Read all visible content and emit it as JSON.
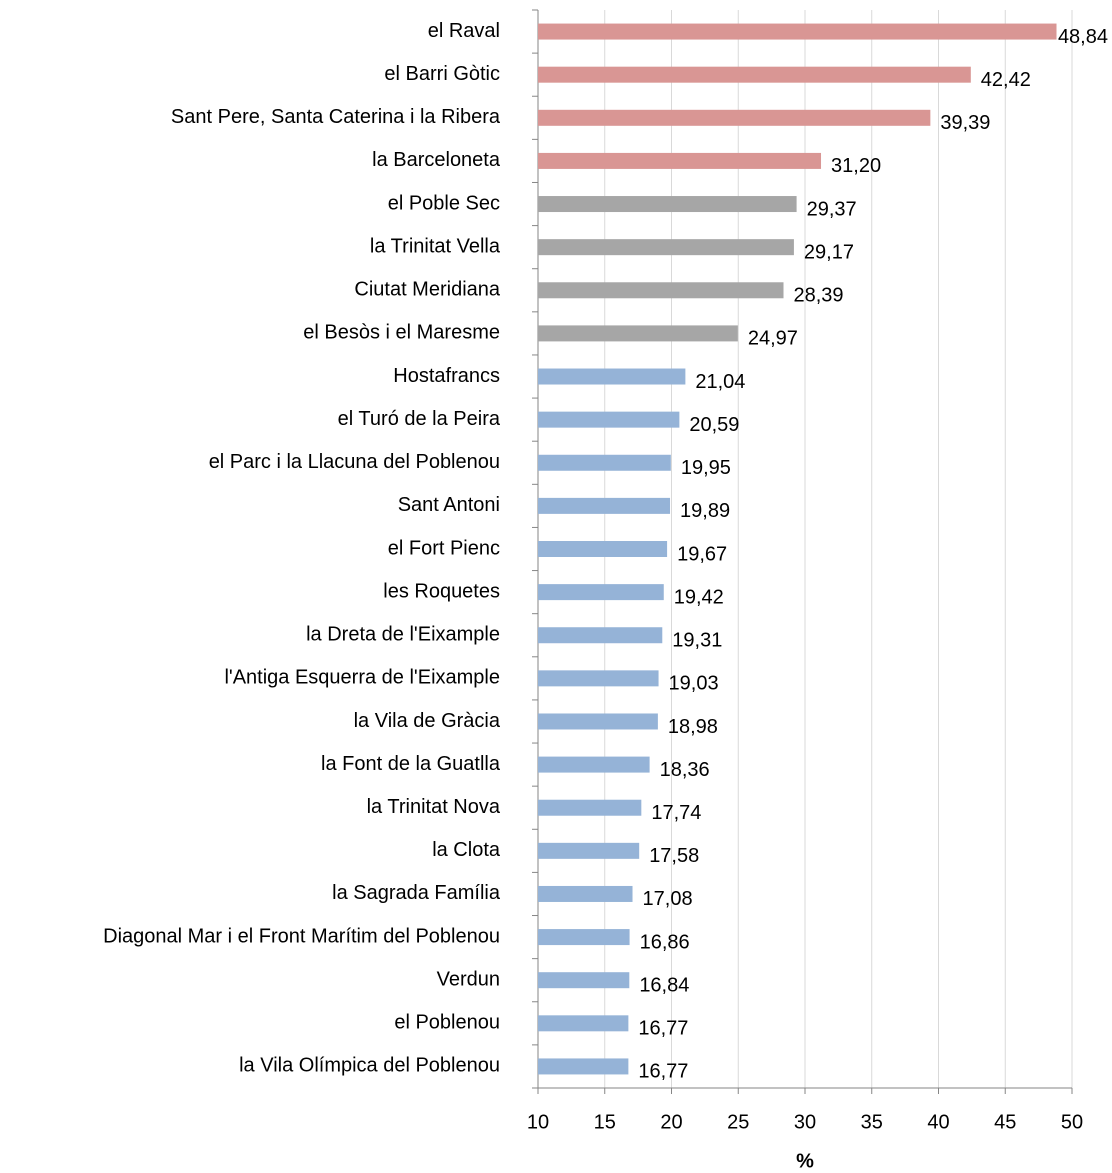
{
  "chart_data": {
    "type": "hbar",
    "xlabel": "%",
    "categories": [
      "el Raval",
      "el Barri Gòtic",
      "Sant Pere, Santa Caterina i la Ribera",
      "la Barceloneta",
      "el Poble Sec",
      "la Trinitat Vella",
      "Ciutat Meridiana",
      "el Besòs i el Maresme",
      "Hostafrancs",
      "el Turó de la Peira",
      "el Parc i la Llacuna del Poblenou",
      "Sant Antoni",
      "el Fort Pienc",
      "les Roquetes",
      "la Dreta de l'Eixample",
      "l'Antiga Esquerra de l'Eixample",
      "la Vila de Gràcia",
      "la Font de la Guatlla",
      "la Trinitat Nova",
      "la Clota",
      "la Sagrada Família",
      "Diagonal Mar i el Front Marítim del Poblenou",
      "Verdun",
      "el Poblenou",
      "la Vila Olímpica del Poblenou"
    ],
    "values": [
      48.84,
      42.42,
      39.39,
      31.2,
      29.37,
      29.17,
      28.39,
      24.97,
      21.04,
      20.59,
      19.95,
      19.89,
      19.67,
      19.42,
      19.31,
      19.03,
      18.98,
      18.36,
      17.74,
      17.58,
      17.08,
      16.86,
      16.84,
      16.77,
      16.77
    ],
    "value_labels": [
      "48,84",
      "42,42",
      "39,39",
      "31,20",
      "29,37",
      "29,17",
      "28,39",
      "24,97",
      "21,04",
      "20,59",
      "19,95",
      "19,89",
      "19,67",
      "19,42",
      "19,31",
      "19,03",
      "18,98",
      "18,36",
      "17,74",
      "17,58",
      "17,08",
      "16,86",
      "16,84",
      "16,77",
      "16,77"
    ],
    "colors": [
      "#d99694",
      "#d99694",
      "#d99694",
      "#d99694",
      "#a6a6a6",
      "#a6a6a6",
      "#a6a6a6",
      "#a6a6a6",
      "#95b3d7",
      "#95b3d7",
      "#95b3d7",
      "#95b3d7",
      "#95b3d7",
      "#95b3d7",
      "#95b3d7",
      "#95b3d7",
      "#95b3d7",
      "#95b3d7",
      "#95b3d7",
      "#95b3d7",
      "#95b3d7",
      "#95b3d7",
      "#95b3d7",
      "#95b3d7",
      "#95b3d7"
    ],
    "xlim": [
      10,
      50
    ],
    "xticks": [
      10,
      15,
      20,
      25,
      30,
      35,
      40,
      45,
      50
    ],
    "grid": true
  }
}
